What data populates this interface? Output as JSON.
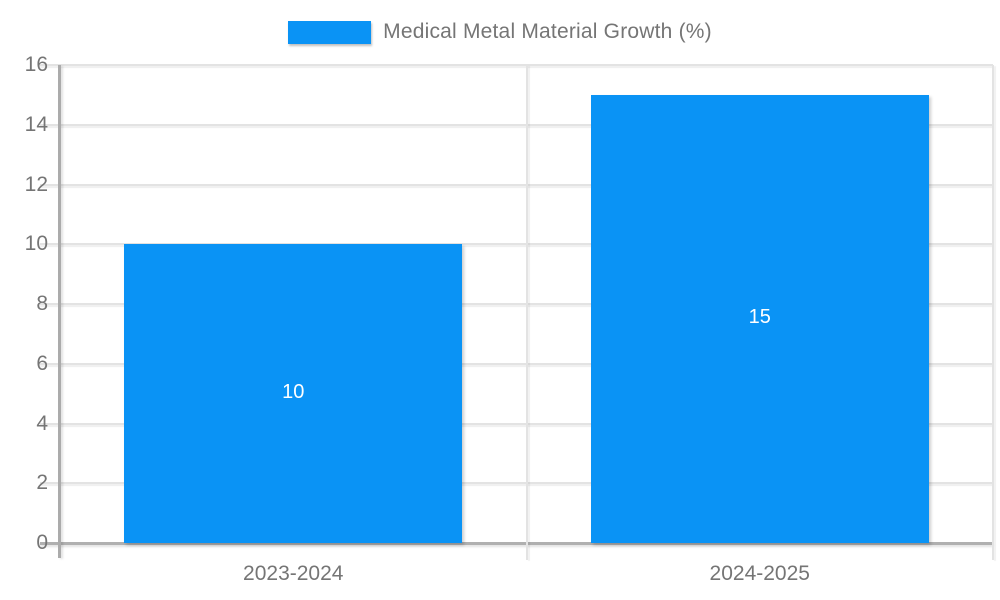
{
  "legend": {
    "label": "Medical Metal Material Growth (%)"
  },
  "chart_data": {
    "type": "bar",
    "title": "Medical Metal Material Growth (%)",
    "series_name": "Medical Metal Material Growth (%)",
    "categories": [
      "2023-2024",
      "2024-2025"
    ],
    "values": [
      10,
      15
    ],
    "data_labels": [
      "10",
      "15"
    ],
    "xlabel": "",
    "ylabel": "",
    "ylim": [
      0,
      16
    ],
    "yticks": [
      0,
      2,
      4,
      6,
      8,
      10,
      12,
      14,
      16
    ],
    "grid": true,
    "legend_position": "top-center",
    "bar_color": "#0a93f5",
    "text_color": "#757575",
    "data_label_color": "#ffffff",
    "axis_color": "#ababab",
    "gridline_color": "#e3e3e3"
  }
}
